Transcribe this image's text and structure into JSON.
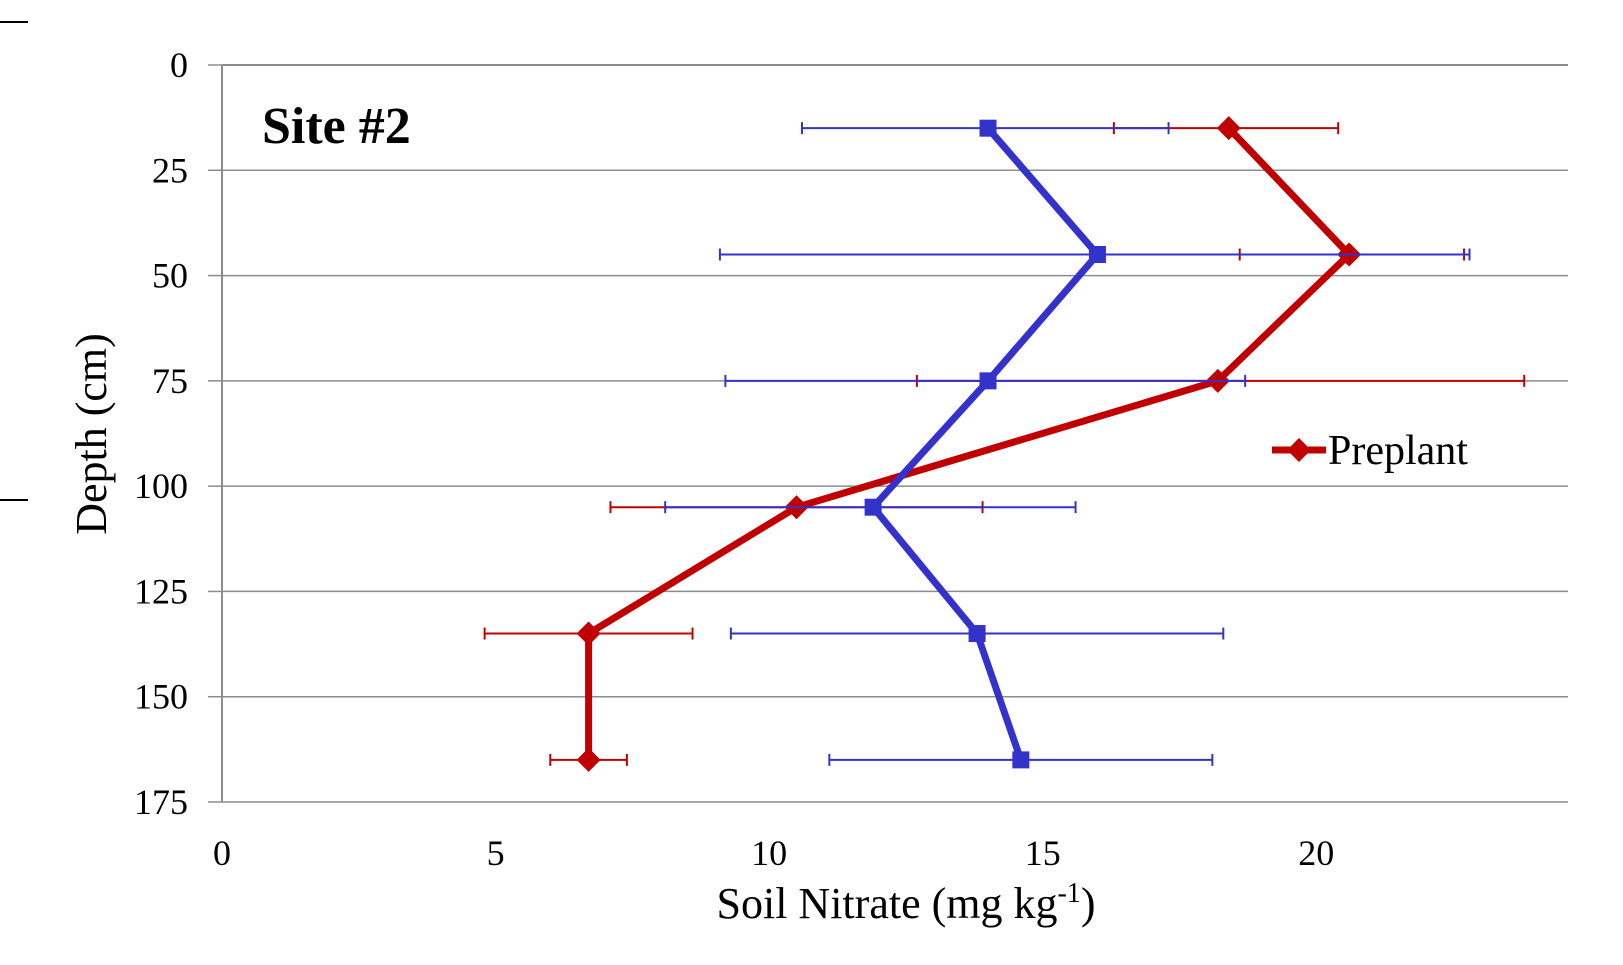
{
  "chart_data": {
    "type": "line",
    "annotation": "Site #2",
    "xlabel": "Soil Nitrate (mg kg",
    "xlabel_sup": "-1",
    "xlabel_end": ")",
    "ylabel": "Depth (cm)",
    "xlim": [
      0,
      24.6
    ],
    "ylim": [
      0,
      175
    ],
    "y_inverted": true,
    "x_ticks": [
      "0",
      "5",
      "10",
      "15",
      "20"
    ],
    "y_ticks": [
      "0",
      "25",
      "50",
      "75",
      "100",
      "125",
      "150",
      "175"
    ],
    "grid": "horizontal",
    "legend_position": "right",
    "series": [
      {
        "name": "Preplant",
        "color": "#c00000",
        "marker": "diamond",
        "x": [
          18.4,
          20.6,
          18.2,
          10.5,
          6.7,
          6.7
        ],
        "y": [
          15,
          45,
          75,
          105,
          135,
          165
        ],
        "err_low": [
          16.3,
          18.6,
          12.7,
          7.1,
          4.8,
          6.0
        ],
        "err_high": [
          20.4,
          22.7,
          23.8,
          13.9,
          8.6,
          7.4
        ]
      },
      {
        "color": "#3333cc",
        "marker": "square",
        "x": [
          14.0,
          16.0,
          14.0,
          11.9,
          13.8,
          14.6
        ],
        "y": [
          15,
          45,
          75,
          105,
          135,
          165
        ],
        "err_low": [
          10.6,
          9.1,
          9.2,
          8.1,
          9.3,
          11.1
        ],
        "err_high": [
          17.3,
          22.8,
          18.7,
          15.6,
          18.3,
          18.1
        ]
      }
    ]
  }
}
